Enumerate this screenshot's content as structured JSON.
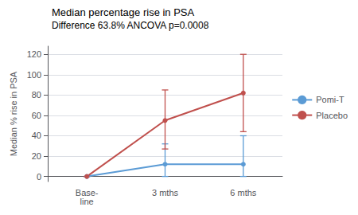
{
  "chart_data": {
    "type": "line",
    "title": "Median percentage rise in PSA",
    "subtitle": "Difference 63.8% ANCOVA p=0.0008",
    "ylabel": "Median % rise in PSA",
    "categories": [
      "Base-\nline",
      "3 mths",
      "6 mths"
    ],
    "series": [
      {
        "name": "Pomi-T",
        "color": "#5B9BD5",
        "values": [
          0,
          12,
          12
        ],
        "error_low": [
          0,
          12,
          12
        ],
        "error_high": [
          0,
          20,
          28
        ]
      },
      {
        "name": "Placebo",
        "color": "#C0504D",
        "values": [
          0,
          55,
          82
        ],
        "error_low": [
          0,
          28,
          38
        ],
        "error_high": [
          0,
          30,
          38
        ]
      }
    ],
    "ylim": [
      -5,
      128
    ],
    "yticks": [
      0,
      20,
      40,
      60,
      80,
      100,
      120
    ],
    "grid": true,
    "legend": "right",
    "marker": "circle"
  }
}
